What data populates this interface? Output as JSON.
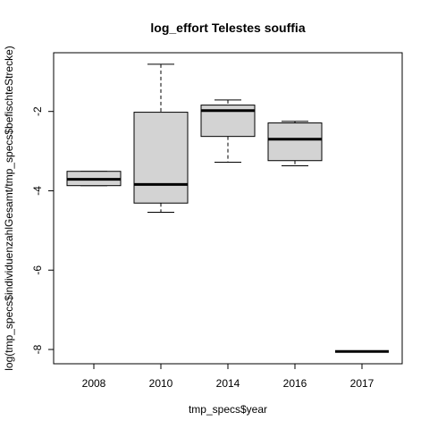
{
  "chart_data": {
    "type": "box",
    "title": "log_effort Telestes souffia",
    "xlabel": "tmp_specs$year",
    "ylabel": "log(tmp_specs$individuenzahlGesamt/tmp_specs$befischteStrecke)",
    "categories": [
      "2008",
      "2010",
      "2014",
      "2016",
      "2017"
    ],
    "boxes": [
      {
        "min": -3.87,
        "q1": -3.87,
        "median": -3.71,
        "q3": -3.51,
        "max": -3.51
      },
      {
        "min": -4.54,
        "q1": -4.31,
        "median": -3.84,
        "q3": -2.02,
        "max": -0.81
      },
      {
        "min": -3.28,
        "q1": -2.63,
        "median": -1.98,
        "q3": -1.84,
        "max": -1.71
      },
      {
        "min": -3.37,
        "q1": -3.24,
        "median": -2.7,
        "q3": -2.29,
        "max": -2.25
      },
      {
        "min": -8.05,
        "q1": -8.05,
        "median": -8.05,
        "q3": -8.05,
        "max": -8.05
      }
    ],
    "color": "#d3d3d3",
    "ylim": [
      -8.36,
      -0.52
    ],
    "yticks": [
      -8,
      -6,
      -4,
      -2
    ]
  }
}
